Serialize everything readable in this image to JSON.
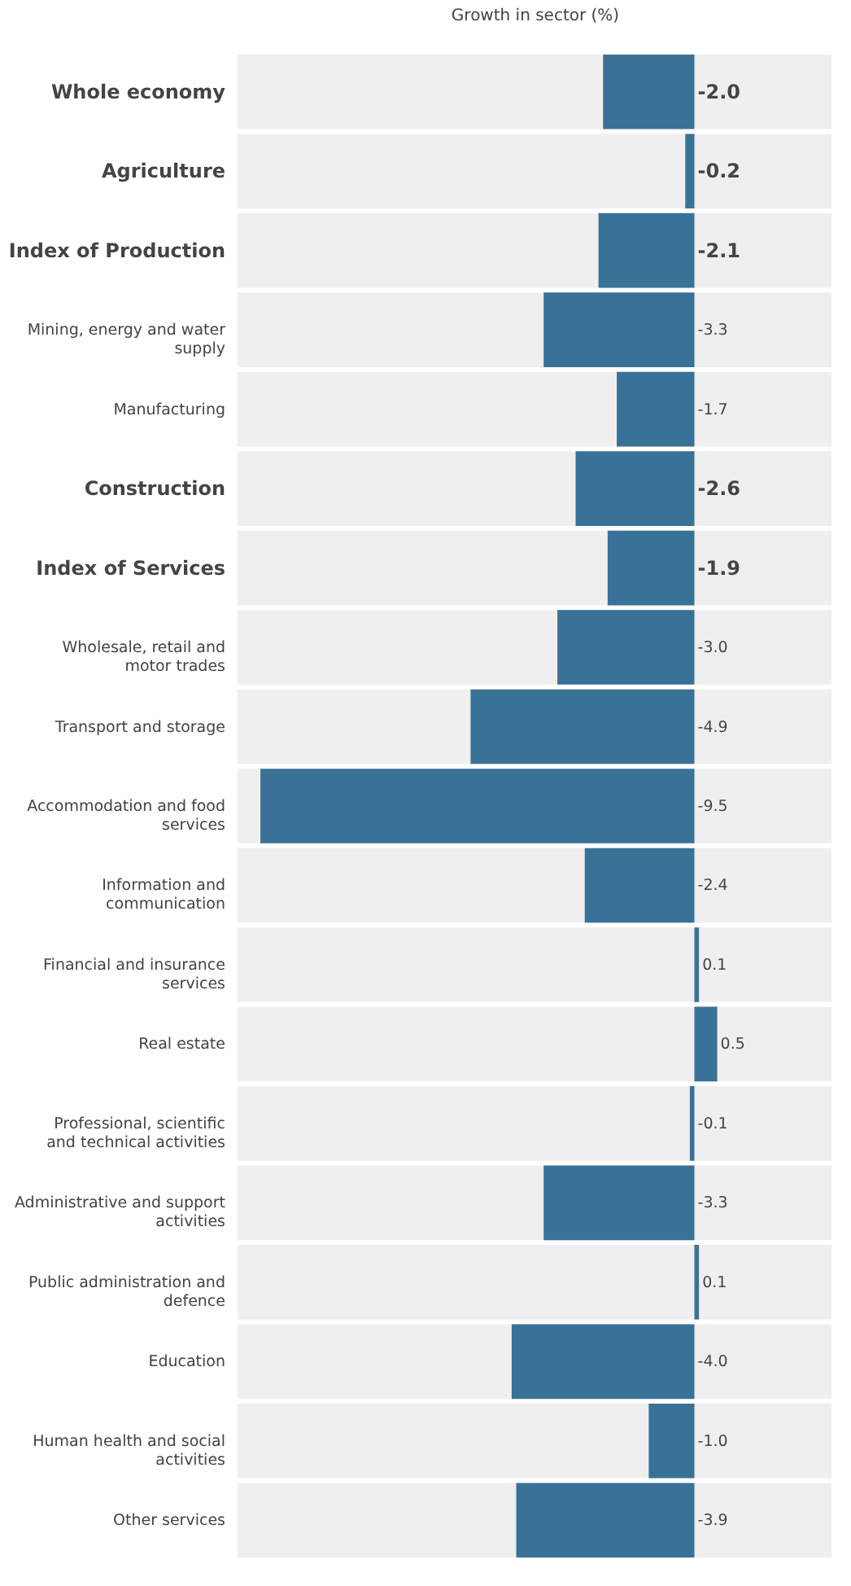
{
  "chart_data": {
    "type": "bar",
    "orientation": "horizontal",
    "xlabel": "Growth in sector (%)",
    "categories": [
      "Whole economy",
      "Agriculture",
      "Index of Production",
      "Mining, energy and water supply",
      "Manufacturing",
      "Construction",
      "Index of Services",
      "Wholesale, retail and motor trades",
      "Transport and storage",
      "Accommodation and food services",
      "Information and communication",
      "Financial and insurance services",
      "Real estate",
      "Professional, scientific and technical activities",
      "Administrative and support activities",
      "Public administration and defence",
      "Education",
      "Human health and social activities",
      "Other services"
    ],
    "values": [
      -2.0,
      -0.2,
      -2.1,
      -3.3,
      -1.7,
      -2.6,
      -1.9,
      -3.0,
      -4.9,
      -9.5,
      -2.4,
      0.1,
      0.5,
      -0.1,
      -3.3,
      0.1,
      -4.0,
      -1.0,
      -3.9
    ],
    "value_labels": [
      "-2.0",
      "-0.2",
      "-2.1",
      "-3.3",
      "-1.7",
      "-2.6",
      "-1.9",
      "-3.0",
      "-4.9",
      "-9.5",
      "-2.4",
      "0.1",
      "0.5",
      "-0.1",
      "-3.3",
      "0.1",
      "-4.0",
      "-1.0",
      "-3.9"
    ],
    "color": "#3a7196",
    "xlim": [
      -10,
      3
    ],
    "tick_labels": "y",
    "grid": false
  }
}
